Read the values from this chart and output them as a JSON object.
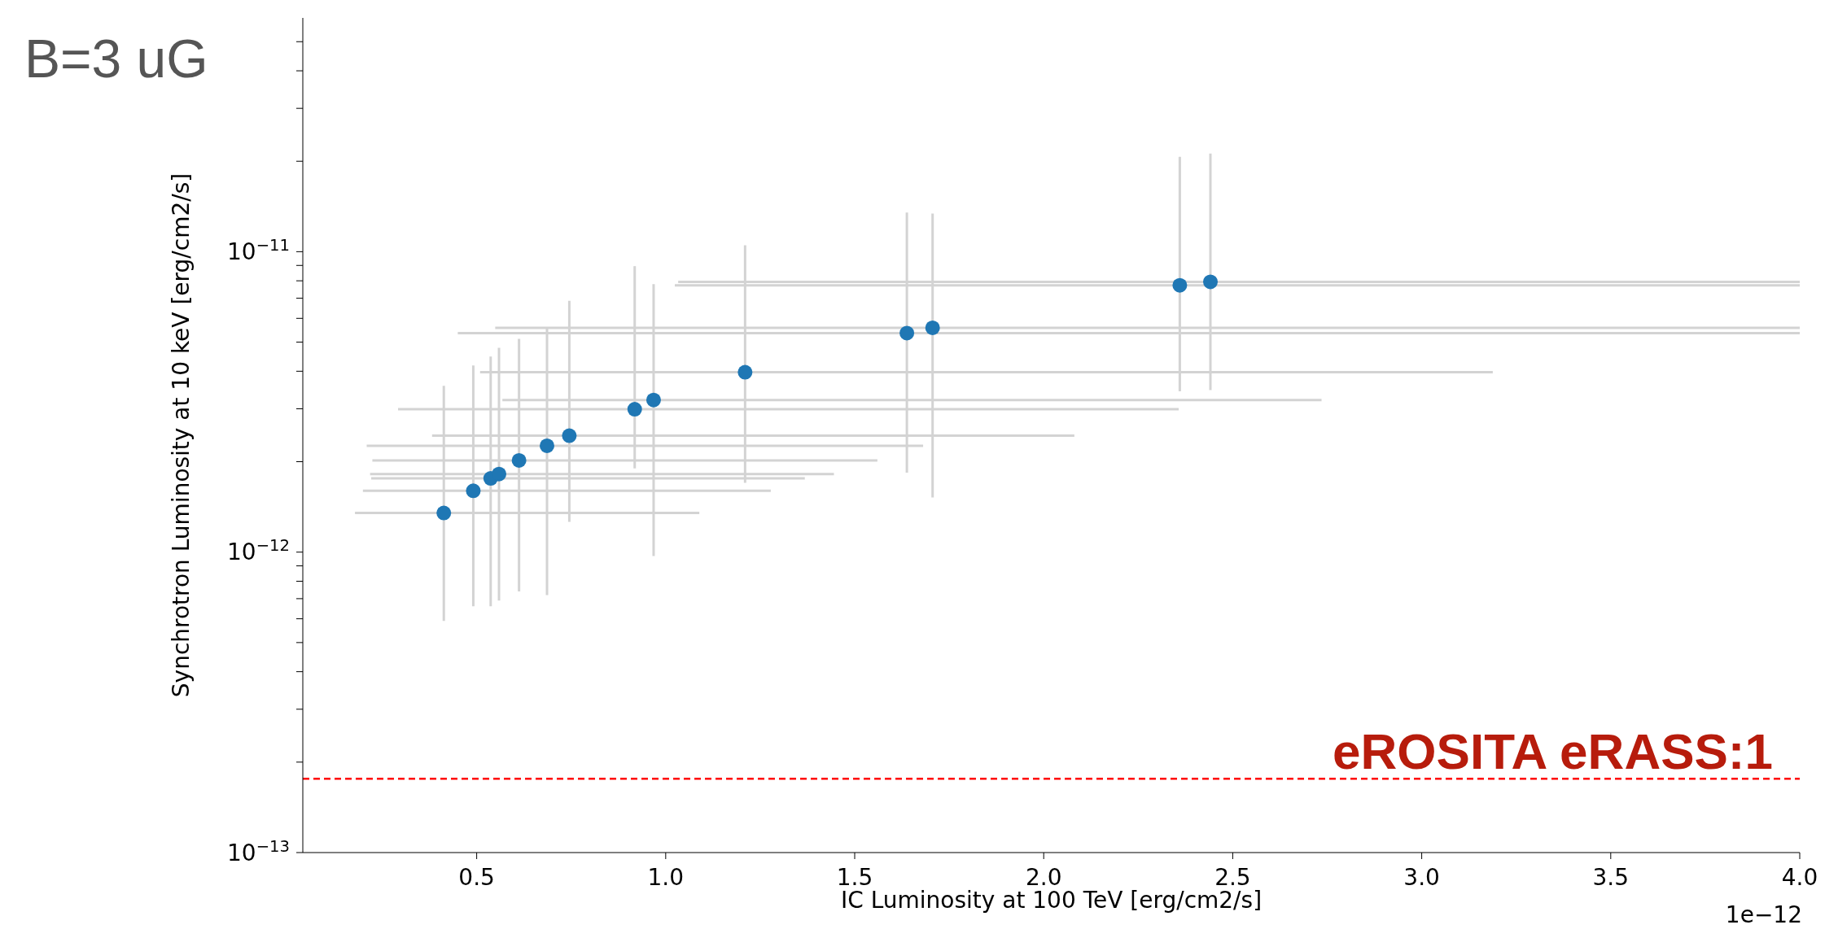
{
  "chart_data": {
    "type": "scatter",
    "title": "B=3 uG",
    "xlabel": "IC Luminosity at 100 TeV [erg/cm2/s]",
    "ylabel": "Synchrotron Luminosity at 10 keV [erg/cm2/s]",
    "log": "y",
    "marker": "circle",
    "xlim": [
      0.04,
      4.0
    ],
    "xticks": [
      0.5,
      {
        "value": 1,
        "label": "1.0"
      },
      1.5,
      {
        "value": 2,
        "label": "2.0"
      },
      2.5,
      {
        "value": 3,
        "label": "3.0"
      },
      3.5,
      {
        "value": 4,
        "label": "4.0"
      }
    ],
    "ylim": [
      1e-13,
      6e-11
    ],
    "yticks": [
      {
        "value": 1e-13,
        "label": "10$^{−13}$"
      },
      {
        "value": 2e-13,
        "label": null
      },
      {
        "value": 3e-13,
        "label": null
      },
      {
        "value": 4e-13,
        "label": null
      },
      {
        "value": 5e-13,
        "label": null
      },
      {
        "value": 6e-13,
        "label": null
      },
      {
        "value": 7e-13,
        "label": null
      },
      {
        "value": 8e-13,
        "label": null
      },
      {
        "value": 9e-13,
        "label": null
      },
      {
        "value": 1e-12,
        "label": "10$^{−12}$"
      },
      {
        "value": 2e-12,
        "label": null
      },
      {
        "value": 3e-12,
        "label": null
      },
      {
        "value": 4e-12,
        "label": null
      },
      {
        "value": 5e-12,
        "label": null
      },
      {
        "value": 6e-12,
        "label": null
      },
      {
        "value": 7e-12,
        "label": null
      },
      {
        "value": 8e-12,
        "label": null
      },
      {
        "value": 9e-12,
        "label": null
      },
      {
        "value": 1e-11,
        "label": "10$^{−11}$"
      },
      {
        "value": 2e-11,
        "label": null
      },
      {
        "value": 3e-11,
        "label": null
      },
      {
        "value": 4e-11,
        "label": null
      },
      {
        "value": 5e-11,
        "label": null
      }
    ],
    "annotations": [
      "1e−12",
      "eROSITA eRASS:1"
    ],
    "ref_lines": [
      {
        "axis": "y",
        "value": 1.76e-13,
        "color": "#ff0000",
        "line_style": "dashed"
      }
    ],
    "series": [
      {
        "color": "#1f77b4",
        "x": [
          0.413,
          0.491,
          0.537,
          0.559,
          0.612,
          0.686,
          0.745,
          0.918,
          0.968,
          1.21,
          1.638,
          1.706,
          2.36,
          2.441
        ],
        "values": [
          1.35e-12,
          1.6e-12,
          1.76e-12,
          1.82e-12,
          2.02e-12,
          2.26e-12,
          2.44e-12,
          2.99e-12,
          3.21e-12,
          3.97e-12,
          5.36e-12,
          5.58e-12,
          7.73e-12,
          7.94e-12
        ],
        "errors": [
          [
            5.9e-13,
            3.58e-12
          ],
          [
            6.6e-13,
            4.18e-12
          ],
          [
            6.6e-13,
            4.48e-12
          ],
          [
            6.9e-13,
            4.79e-12
          ],
          [
            7.4e-13,
            5.13e-12
          ],
          [
            7.2e-13,
            5.58e-12
          ],
          [
            1.26e-12,
            6.86e-12
          ],
          [
            1.9e-12,
            8.95e-12
          ],
          [
            9.7e-13,
            7.8e-12
          ],
          [
            1.7e-12,
            1.05e-11
          ],
          [
            1.84e-12,
            1.35e-11
          ],
          [
            1.52e-12,
            1.34e-11
          ],
          [
            3.43e-12,
            2.07e-11
          ],
          [
            3.46e-12,
            2.12e-11
          ]
        ],
        "xerrors": [
          [
            0.178,
            1.089
          ],
          [
            0.199,
            1.278
          ],
          [
            0.221,
            1.368
          ],
          [
            0.218,
            1.445
          ],
          [
            0.224,
            1.56
          ],
          [
            0.209,
            1.681
          ],
          [
            0.382,
            2.081
          ],
          [
            0.292,
            2.357
          ],
          [
            0.568,
            2.735
          ],
          [
            0.509,
            3.188
          ],
          [
            0.45,
            4.0
          ],
          [
            0.549,
            4.0
          ],
          [
            1.024,
            4.0
          ],
          [
            1.033,
            4.0
          ]
        ]
      }
    ]
  }
}
